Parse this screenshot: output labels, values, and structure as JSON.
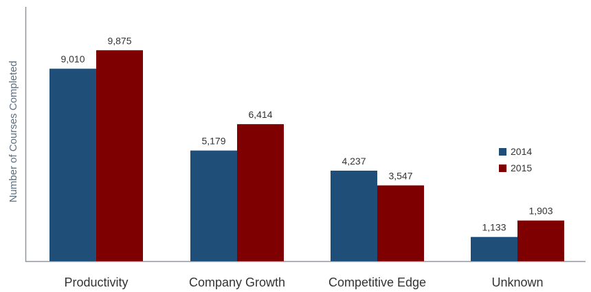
{
  "colors": {
    "series_2014": "#1f4e79",
    "series_2015": "#7f0000",
    "axis": "#8c96a1"
  },
  "chart_data": {
    "type": "bar",
    "title": "",
    "xlabel": "",
    "ylabel": "Number of Courses Completed",
    "categories": [
      "Productivity",
      "Company Growth",
      "Competitive Edge",
      "Unknown"
    ],
    "series": [
      {
        "name": "2014",
        "values": [
          9010,
          5179,
          4237,
          1133
        ]
      },
      {
        "name": "2015",
        "values": [
          9875,
          6414,
          3547,
          1903
        ]
      }
    ],
    "value_labels": {
      "2014": [
        "9,010",
        "5,179",
        "4,237",
        "1,133"
      ],
      "2015": [
        "9,875",
        "6,414",
        "3,547",
        "1,903"
      ]
    },
    "ylim": [
      0,
      10500
    ],
    "grid": false,
    "legend_position": "right"
  }
}
